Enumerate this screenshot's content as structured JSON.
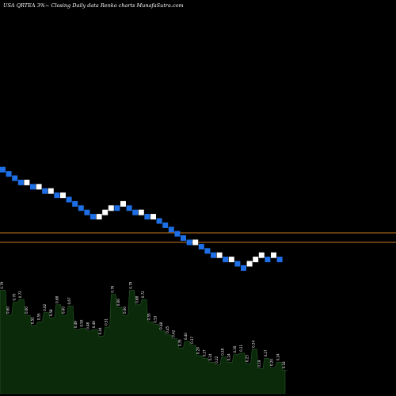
{
  "header": {
    "title": "USA QRTEA 3%~  Closing Daily data  Renko  charts MunafaSutra.com"
  },
  "colors": {
    "background": "#000000",
    "up_brick": "#ffffff",
    "down_brick": "#1e6fe6",
    "level_line": "#c8781e",
    "volume_fill": "#0a2a0a",
    "volume_stroke": "#2a5a2a"
  },
  "chart_data": {
    "type": "renko",
    "brick_direction": [
      "down",
      "down",
      "down",
      "down",
      "up",
      "down",
      "up",
      "down",
      "up",
      "down",
      "up",
      "down",
      "down",
      "down",
      "down",
      "down",
      "up",
      "up",
      "up",
      "down",
      "up",
      "down",
      "down",
      "up",
      "down",
      "up",
      "down",
      "down",
      "down",
      "down",
      "down",
      "down",
      "up",
      "down",
      "down",
      "down",
      "up",
      "down",
      "up",
      "down",
      "down",
      "up",
      "up",
      "up",
      "down",
      "up",
      "down"
    ],
    "brick_level": [
      17,
      16,
      15,
      14,
      14,
      13,
      13,
      12,
      12,
      11,
      11,
      10,
      9,
      8,
      7,
      6,
      6,
      7,
      8,
      8,
      9,
      8,
      7,
      7,
      6,
      6,
      5,
      4,
      3,
      2,
      1,
      0,
      0,
      -1,
      -2,
      -3,
      -3,
      -4,
      -4,
      -5,
      -6,
      -5,
      -4,
      -3,
      -4,
      -3,
      -4
    ],
    "reference_lines": [
      "upper",
      "lower"
    ],
    "volume_labels": [
      "0.79",
      "0.60",
      "0.70",
      "0.72",
      "0.60",
      "0.52",
      "0.55",
      "0.62",
      "0.58",
      "0.68",
      "0.60",
      "0.67",
      "0.49",
      "0.50",
      "0.48",
      "0.49",
      "0.44",
      "0.51",
      "0.76",
      "0.66",
      "0.60",
      "0.79",
      "0.68",
      "0.72",
      "0.55",
      "0.53",
      "0.48",
      "0.45",
      "0.42",
      "0.35",
      "0.40",
      "0.37",
      "0.29",
      "0.27",
      "0.24",
      "0.22",
      "0.28",
      "0.24",
      "0.30",
      "0.31",
      "0.23",
      "0.34",
      "0.19",
      "0.27",
      "0.20",
      "0.24",
      "0.18"
    ]
  }
}
